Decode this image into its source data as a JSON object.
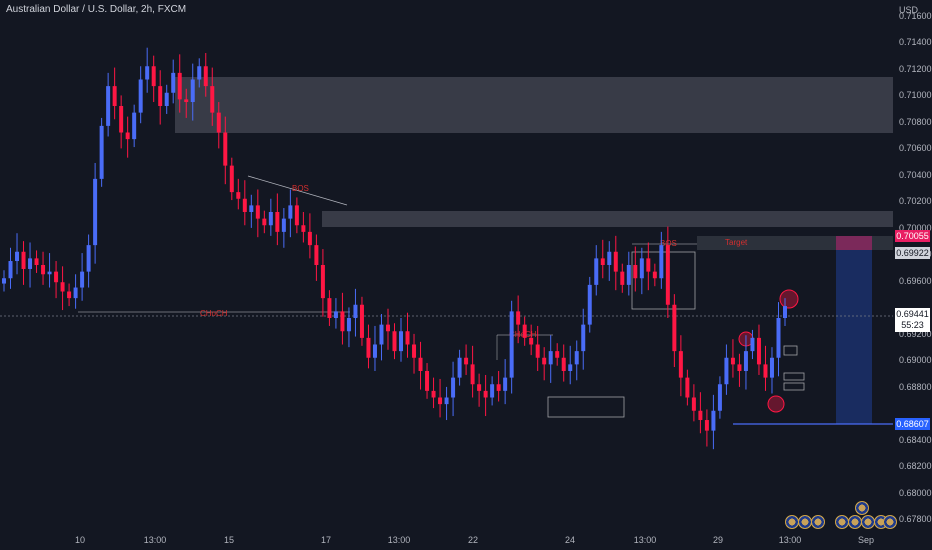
{
  "chart": {
    "title": "Australian Dollar / U.S. Dollar, 2h, FXCM",
    "currency": "USD"
  },
  "colors": {
    "background": "#131722",
    "bull": "#4a6cf7",
    "bear": "#ff1744",
    "zone_fill": "#5d606b",
    "target_fill": "#1e3a8a"
  },
  "price_axis": {
    "ticks": [
      "0.71600",
      "0.71400",
      "0.71200",
      "0.71000",
      "0.70800",
      "0.70600",
      "0.70400",
      "0.70200",
      "0.70000",
      "0.69800",
      "0.69600",
      "0.69200",
      "0.69000",
      "0.68800",
      "0.68400",
      "0.68200",
      "0.68000",
      "0.67800"
    ],
    "badges": {
      "top": "0.70055",
      "second": "0.69922",
      "current": "0.69441",
      "countdown": "55:23",
      "bottom": "0.68607"
    }
  },
  "time_axis": {
    "ticks": [
      "10",
      "13:00",
      "15",
      "17",
      "13:00",
      "22",
      "24",
      "13:00",
      "29",
      "13:00",
      "Sep"
    ]
  },
  "annotations": {
    "choch_left": "CHoCH",
    "choch_mid": "CHoCH",
    "bos_left": "BOS",
    "bos_right": "BOS",
    "target_label": "Target"
  },
  "chart_data": {
    "type": "candlestick",
    "instrument": "AUDUSD",
    "timeframe": "2h",
    "ylim": [
      0.6775,
      0.7175
    ],
    "closes": [
      0.6965,
      0.6978,
      0.6985,
      0.6972,
      0.698,
      0.6975,
      0.6968,
      0.697,
      0.6962,
      0.6955,
      0.695,
      0.6958,
      0.697,
      0.699,
      0.704,
      0.708,
      0.711,
      0.7095,
      0.7075,
      0.707,
      0.709,
      0.7115,
      0.7125,
      0.711,
      0.7095,
      0.7105,
      0.712,
      0.71,
      0.7098,
      0.7115,
      0.7125,
      0.711,
      0.709,
      0.7075,
      0.705,
      0.703,
      0.7025,
      0.7015,
      0.702,
      0.701,
      0.7005,
      0.7015,
      0.7,
      0.701,
      0.702,
      0.7005,
      0.7,
      0.699,
      0.6975,
      0.695,
      0.6935,
      0.694,
      0.6925,
      0.6935,
      0.6945,
      0.692,
      0.6905,
      0.6915,
      0.693,
      0.6925,
      0.691,
      0.6925,
      0.6915,
      0.6905,
      0.6895,
      0.688,
      0.6875,
      0.687,
      0.6875,
      0.689,
      0.6905,
      0.69,
      0.6885,
      0.688,
      0.6875,
      0.6885,
      0.688,
      0.689,
      0.694,
      0.693,
      0.692,
      0.6915,
      0.6905,
      0.69,
      0.691,
      0.6905,
      0.6895,
      0.69,
      0.691,
      0.693,
      0.696,
      0.698,
      0.6975,
      0.6985,
      0.697,
      0.696,
      0.6975,
      0.6965,
      0.698,
      0.697,
      0.6965,
      0.699,
      0.6945,
      0.691,
      0.689,
      0.6875,
      0.6865,
      0.6858,
      0.685,
      0.6865,
      0.6885,
      0.6905,
      0.69,
      0.6895,
      0.691,
      0.692,
      0.69,
      0.689,
      0.6905,
      0.6935,
      0.6944
    ]
  }
}
